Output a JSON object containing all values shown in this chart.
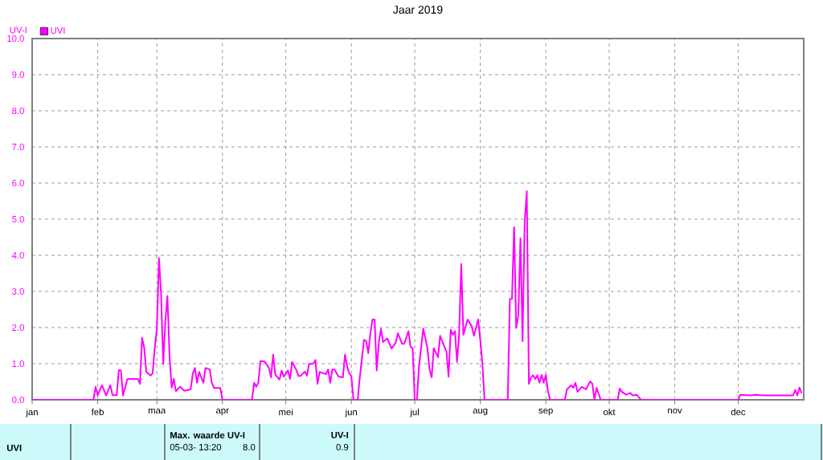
{
  "chart_data": {
    "type": "line",
    "title": "Jaar 2019",
    "ylabel": "UV-I",
    "xlim": [
      "2019-01-01",
      "2020-01-01"
    ],
    "xticks": [
      {
        "value": "2019-01-01",
        "label": "jan"
      },
      {
        "value": "2019-02-01",
        "label": "feb"
      },
      {
        "value": "2019-03-01",
        "label": "maa"
      },
      {
        "value": "2019-04-01",
        "label": "apr"
      },
      {
        "value": "2019-05-01",
        "label": "mei"
      },
      {
        "value": "2019-06-01",
        "label": "jun"
      },
      {
        "value": "2019-07-01",
        "label": "jul"
      },
      {
        "value": "2019-08-01",
        "label": "aug"
      },
      {
        "value": "2019-09-01",
        "label": "sep"
      },
      {
        "value": "2019-10-01",
        "label": "okt"
      },
      {
        "value": "2019-11-01",
        "label": "nov"
      },
      {
        "value": "2019-12-01",
        "label": "dec"
      }
    ],
    "ylim": [
      0,
      10
    ],
    "yticks": [
      {
        "value": 0,
        "label": "0.0"
      },
      {
        "value": 1,
        "label": "1.0"
      },
      {
        "value": 2,
        "label": "2.0"
      },
      {
        "value": 3,
        "label": "3.0"
      },
      {
        "value": 4,
        "label": "4.0"
      },
      {
        "value": 5,
        "label": "5.0"
      },
      {
        "value": 6,
        "label": "6.0"
      },
      {
        "value": 7,
        "label": "7.0"
      },
      {
        "value": 8,
        "label": "8.0"
      },
      {
        "value": 9,
        "label": "9.0"
      },
      {
        "value": 10,
        "label": "10.0"
      }
    ],
    "grid": true,
    "legend": "top left",
    "line_style": "solid",
    "annotations": [
      "UVI",
      "Max. waarde  UV-I",
      "05-03- 13:20",
      "8.0",
      "UV-I",
      "0.9"
    ],
    "series": [
      {
        "name": "UVI",
        "color": "#ff00ff",
        "x": [
          "2019-01-01",
          "2019-01-30",
          "2019-01-31",
          "2019-02-01",
          "2019-02-03",
          "2019-02-05",
          "2019-02-07",
          "2019-02-08",
          "2019-02-10",
          "2019-02-11",
          "2019-02-12",
          "2019-02-13",
          "2019-02-15",
          "2019-02-17",
          "2019-02-20",
          "2019-02-21",
          "2019-02-22",
          "2019-02-23",
          "2019-02-24",
          "2019-02-26",
          "2019-02-27",
          "2019-02-28",
          "2019-03-01",
          "2019-03-02",
          "2019-03-03",
          "2019-03-04",
          "2019-03-05",
          "2019-03-06",
          "2019-03-07",
          "2019-03-08",
          "2019-03-09",
          "2019-03-10",
          "2019-03-12",
          "2019-03-14",
          "2019-03-17",
          "2019-03-18",
          "2019-03-19",
          "2019-03-20",
          "2019-03-21",
          "2019-03-23",
          "2019-03-24",
          "2019-03-26",
          "2019-03-27",
          "2019-03-28",
          "2019-03-31",
          "2019-04-01",
          "2019-04-15",
          "2019-04-16",
          "2019-04-17",
          "2019-04-18",
          "2019-04-19",
          "2019-04-21",
          "2019-04-23",
          "2019-04-24",
          "2019-04-25",
          "2019-04-26",
          "2019-04-28",
          "2019-04-29",
          "2019-04-30",
          "2019-05-02",
          "2019-05-03",
          "2019-05-04",
          "2019-05-06",
          "2019-05-07",
          "2019-05-08",
          "2019-05-10",
          "2019-05-11",
          "2019-05-12",
          "2019-05-14",
          "2019-05-15",
          "2019-05-16",
          "2019-05-17",
          "2019-05-20",
          "2019-05-21",
          "2019-05-22",
          "2019-05-23",
          "2019-05-24",
          "2019-05-26",
          "2019-05-28",
          "2019-05-29",
          "2019-05-30",
          "2019-05-31",
          "2019-06-01",
          "2019-06-02",
          "2019-06-04",
          "2019-06-05",
          "2019-06-06",
          "2019-06-07",
          "2019-06-08",
          "2019-06-09",
          "2019-06-10",
          "2019-06-11",
          "2019-06-12",
          "2019-06-13",
          "2019-06-14",
          "2019-06-15",
          "2019-06-16",
          "2019-06-18",
          "2019-06-20",
          "2019-06-22",
          "2019-06-23",
          "2019-06-25",
          "2019-06-26",
          "2019-06-28",
          "2019-06-29",
          "2019-06-30",
          "2019-07-01",
          "2019-07-02",
          "2019-07-03",
          "2019-07-04",
          "2019-07-05",
          "2019-07-07",
          "2019-07-08",
          "2019-07-09",
          "2019-07-10",
          "2019-07-12",
          "2019-07-13",
          "2019-07-15",
          "2019-07-16",
          "2019-07-17",
          "2019-07-18",
          "2019-07-19",
          "2019-07-20",
          "2019-07-21",
          "2019-07-22",
          "2019-07-23",
          "2019-07-24",
          "2019-07-26",
          "2019-07-28",
          "2019-07-29",
          "2019-07-31",
          "2019-08-01",
          "2019-08-02",
          "2019-08-03",
          "2019-08-14",
          "2019-08-15",
          "2019-08-16",
          "2019-08-17",
          "2019-08-18",
          "2019-08-19",
          "2019-08-20",
          "2019-08-21",
          "2019-08-22",
          "2019-08-23",
          "2019-08-24",
          "2019-08-25",
          "2019-08-26",
          "2019-08-27",
          "2019-08-28",
          "2019-08-29",
          "2019-08-30",
          "2019-08-31",
          "2019-09-01",
          "2019-09-02",
          "2019-09-03",
          "2019-09-10",
          "2019-09-11",
          "2019-09-13",
          "2019-09-14",
          "2019-09-15",
          "2019-09-16",
          "2019-09-18",
          "2019-09-20",
          "2019-09-22",
          "2019-09-23",
          "2019-09-24",
          "2019-09-25",
          "2019-09-26",
          "2019-09-27",
          "2019-10-05",
          "2019-10-06",
          "2019-10-07",
          "2019-10-09",
          "2019-10-11",
          "2019-10-12",
          "2019-10-14",
          "2019-10-16",
          "2019-12-01",
          "2019-12-02",
          "2019-12-07",
          "2019-12-09",
          "2019-12-13",
          "2019-12-27",
          "2019-12-28",
          "2019-12-29",
          "2019-12-30",
          "2019-12-31"
        ],
        "values": [
          0,
          0,
          0.36,
          0.12,
          0.4,
          0.12,
          0.4,
          0.13,
          0.13,
          0.82,
          0.81,
          0.12,
          0.57,
          0.58,
          0.58,
          0.44,
          1.72,
          1.44,
          0.77,
          0.67,
          0.73,
          1.44,
          1.96,
          3.92,
          2.92,
          0.99,
          2.18,
          2.87,
          1.21,
          0.34,
          0.58,
          0.24,
          0.36,
          0.25,
          0.29,
          0.73,
          0.88,
          0.47,
          0.77,
          0.47,
          0.88,
          0.84,
          0.47,
          0.33,
          0.33,
          0,
          0,
          0.47,
          0.36,
          0.47,
          1.07,
          1.06,
          0.88,
          0.62,
          1.25,
          0.7,
          0.56,
          0.81,
          0.64,
          0.81,
          0.58,
          1.05,
          0.82,
          0.66,
          0.66,
          0.78,
          0.67,
          0.99,
          1.0,
          1.1,
          0.44,
          0.77,
          0.71,
          0.84,
          0.47,
          0.84,
          0.84,
          0.64,
          0.62,
          1.25,
          0.92,
          0.73,
          0.66,
          0,
          0,
          0.62,
          1.14,
          1.66,
          1.63,
          1.29,
          1.84,
          2.22,
          2.22,
          0.81,
          1.58,
          1.96,
          1.6,
          1.7,
          1.42,
          1.58,
          1.84,
          1.55,
          1.55,
          1.9,
          1.47,
          1.43,
          0,
          0,
          0.92,
          1.43,
          1.97,
          1.43,
          0.84,
          0.62,
          1.43,
          1.18,
          1.77,
          1.47,
          1.33,
          0.64,
          1.94,
          1.8,
          1.9,
          1.05,
          1.82,
          3.76,
          1.8,
          2.22,
          2.03,
          1.77,
          2.22,
          1.66,
          1.0,
          0,
          0,
          2.79,
          2.8,
          4.78,
          1.99,
          2.33,
          4.47,
          1.62,
          4.92,
          5.77,
          0.44,
          0.62,
          0.68,
          0.58,
          0.68,
          0.47,
          0.69,
          0.47,
          0.69,
          0.25,
          0,
          0,
          0.29,
          0.4,
          0.33,
          0.47,
          0.22,
          0.36,
          0.29,
          0.51,
          0.44,
          0,
          0.33,
          0.16,
          0,
          0,
          0.31,
          0.22,
          0.14,
          0.19,
          0.12,
          0.14,
          0,
          0,
          0.14,
          0.12,
          0.14,
          0.12,
          0.12,
          0.27,
          0.12,
          0.34,
          0.18
        ]
      }
    ]
  }
}
